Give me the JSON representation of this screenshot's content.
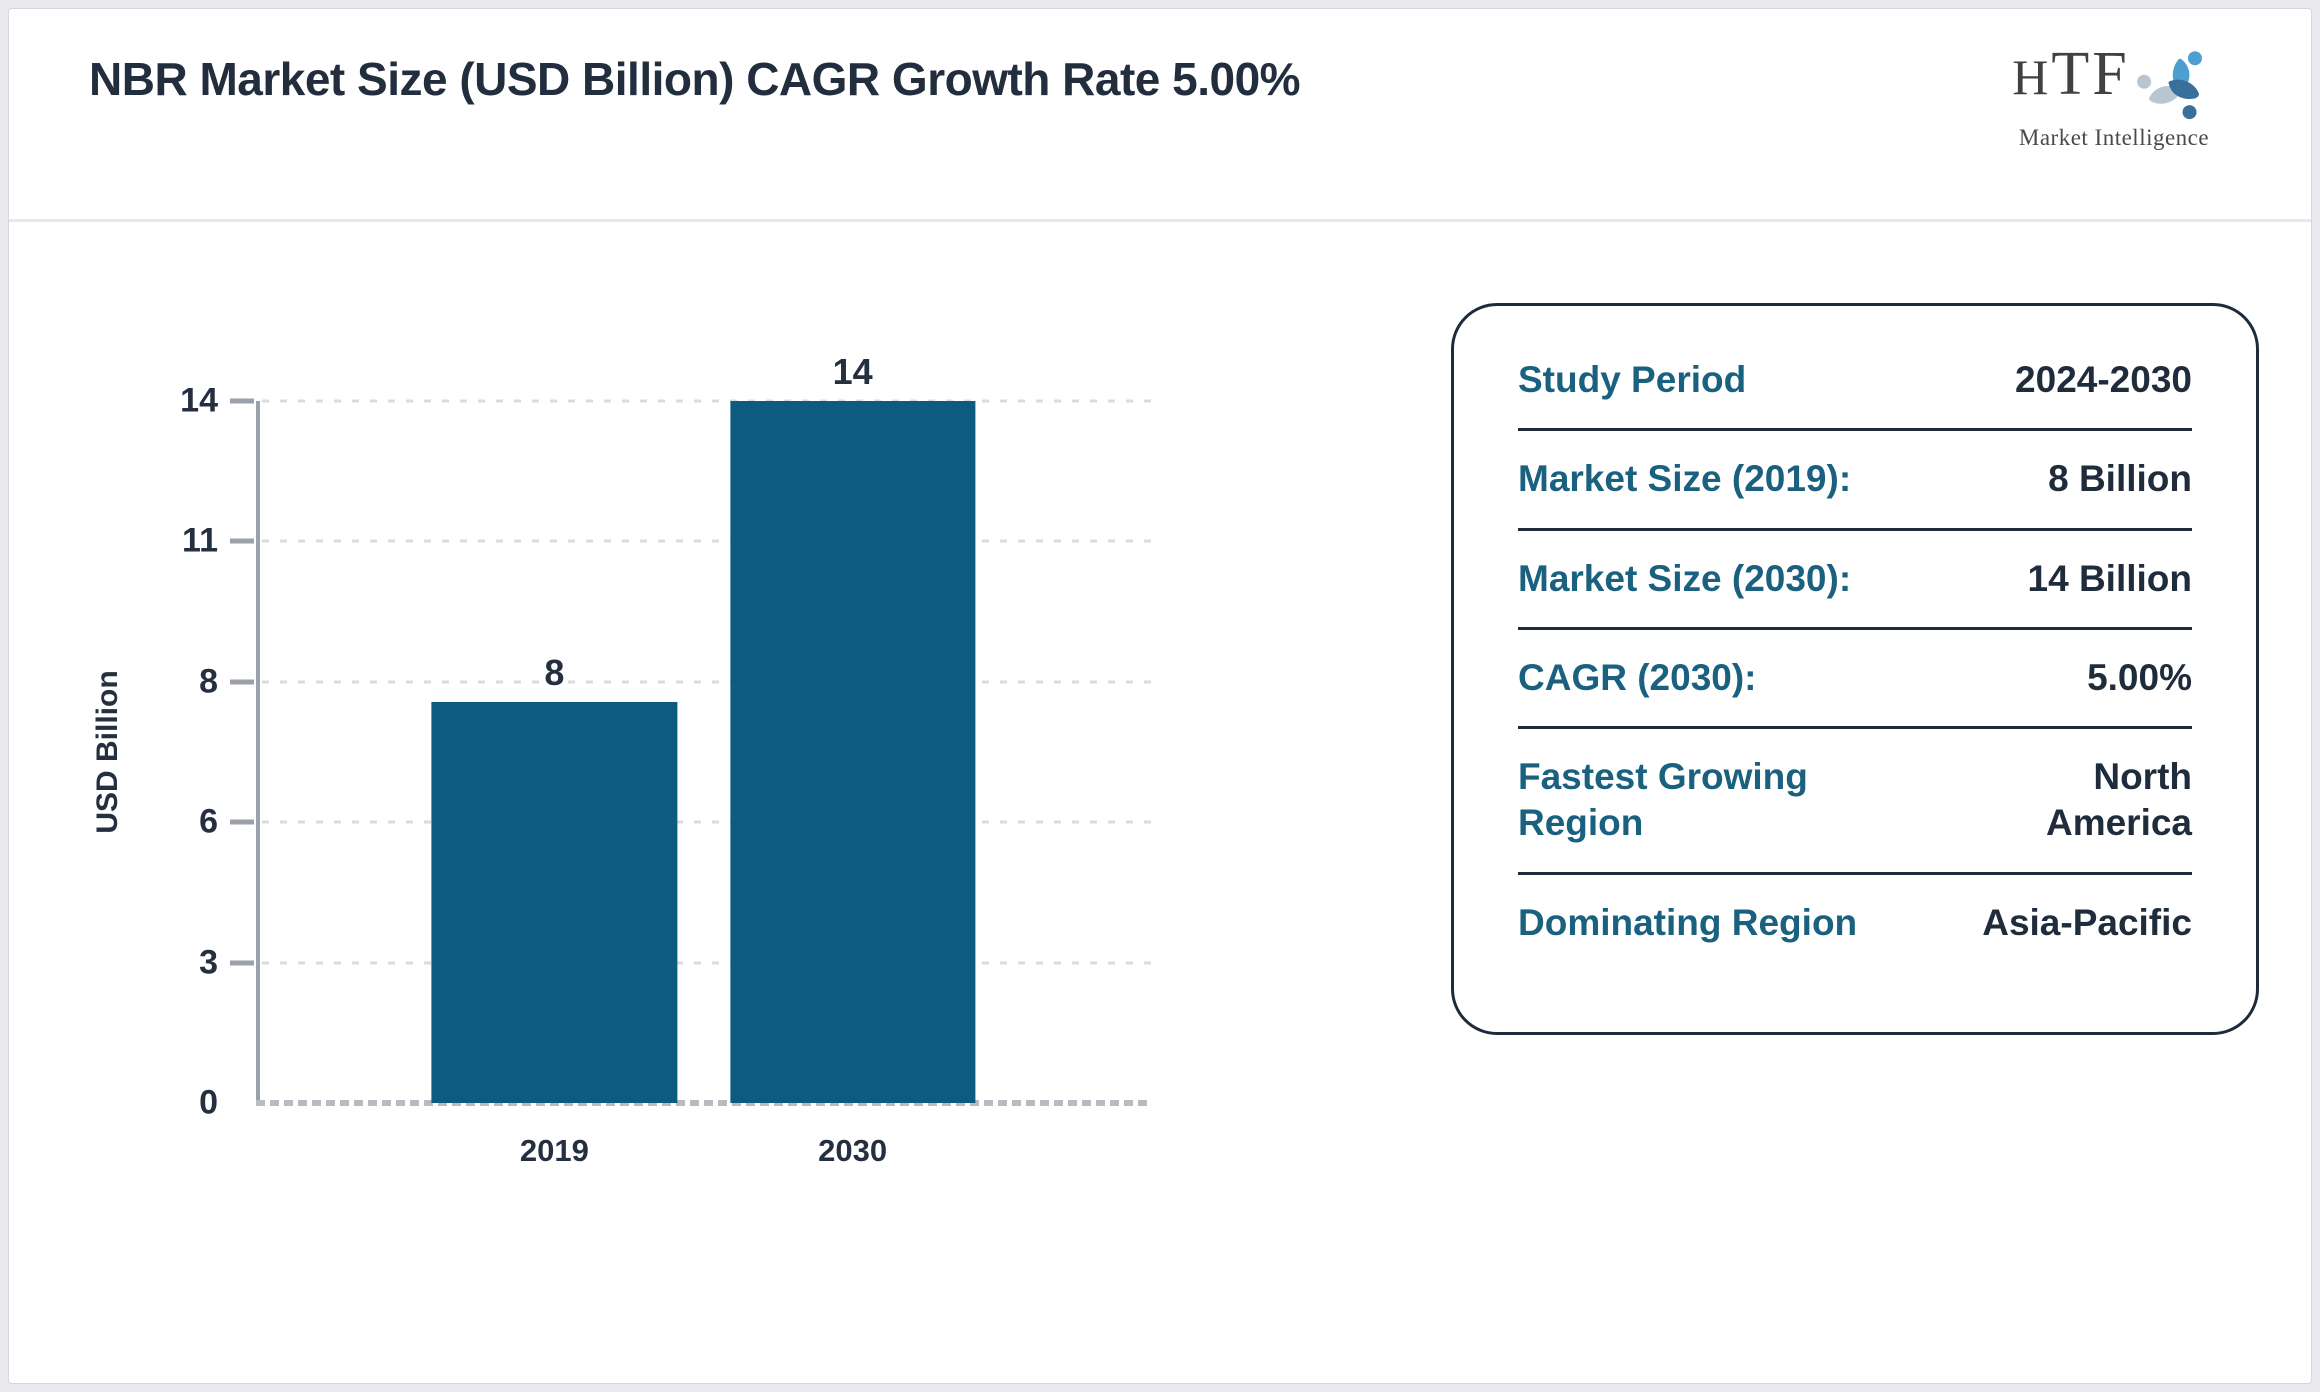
{
  "header": {
    "title": "NBR Market Size (USD Billion) CAGR Growth Rate 5.00%",
    "logo": {
      "text_small": "H",
      "text_large": "TF",
      "subtext": "Market Intelligence"
    }
  },
  "chart_data": {
    "type": "bar",
    "categories": [
      "2019",
      "2030"
    ],
    "values": [
      8,
      14
    ],
    "bar_labels": [
      "8",
      "14"
    ],
    "title": "NBR Market Size (USD Billion) CAGR Growth Rate 5.00%",
    "xlabel": "",
    "ylabel": "USD Billion",
    "ylim": [
      0,
      14
    ],
    "yticks": [
      0,
      3,
      6,
      8,
      11,
      14
    ],
    "ytick_spacing": "even",
    "grid": "horizontal-dashed",
    "legend": "none",
    "bar_color": "#0d5c80",
    "bar_width_frac": 0.274
  },
  "card": {
    "rows": [
      {
        "label": "Study Period",
        "value": "2024-2030"
      },
      {
        "label": "Market Size (2019):",
        "value": "8 Billion"
      },
      {
        "label": "Market Size (2030):",
        "value": "14 Billion"
      },
      {
        "label": "CAGR (2030):",
        "value": "5.00%"
      },
      {
        "label": "Fastest Growing\nRegion",
        "value": "North\nAmerica"
      },
      {
        "label": "Dominating Region",
        "value": "Asia-Pacific"
      }
    ]
  },
  "colors": {
    "accent_teal": "#1a617f",
    "bar_teal": "#0d5c80",
    "navy_text": "#243040",
    "axis_gray": "#9aa1ab",
    "page_bg": "#e9eaee"
  }
}
